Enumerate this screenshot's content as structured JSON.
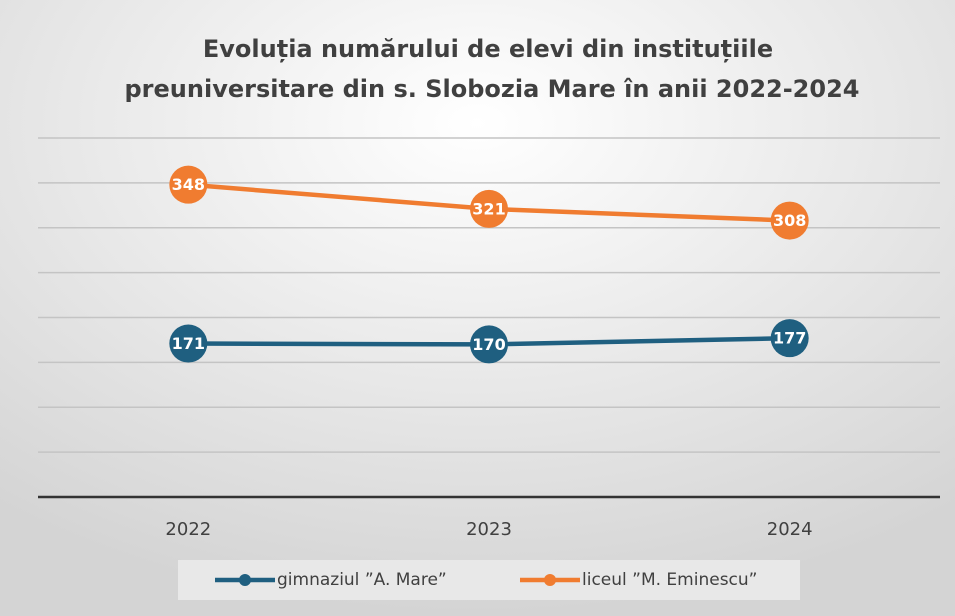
{
  "chart_data": {
    "type": "line",
    "title": [
      "Evoluția numărului de elevi din instituțiile",
      "preuniversitare din s. Slobozia Mare în anii 2022-2024"
    ],
    "categories": [
      "2022",
      "2023",
      "2024"
    ],
    "series": [
      {
        "name": "gimnaziul ”A. Mare”",
        "color": "#1f5f80",
        "values": [
          171,
          170,
          177
        ]
      },
      {
        "name": "liceul ”M. Eminescu”",
        "color": "#f07c30",
        "values": [
          348,
          321,
          308
        ]
      }
    ],
    "ylim": [
      0,
      400
    ],
    "yticks": [
      0,
      50,
      100,
      150,
      200,
      250,
      300,
      350,
      400
    ],
    "grid": true,
    "legend": "bottom"
  }
}
